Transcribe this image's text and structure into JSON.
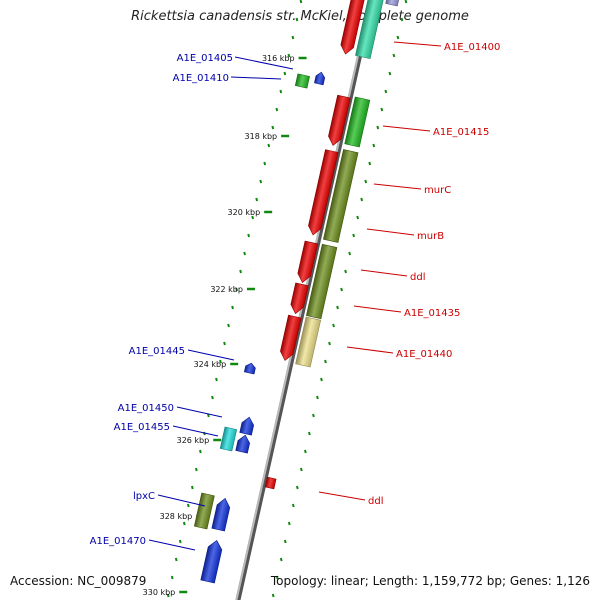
{
  "title": "Rickettsia canadensis str. McKiel, complete genome",
  "footer": {
    "accession": "Accession: NC_009879",
    "topology": "Topology: linear; Length: 1,159,772 bp; Genes: 1,126"
  },
  "scale_labels": [
    "316 kbp",
    "318 kbp",
    "320 kbp",
    "322 kbp",
    "324 kbp",
    "326 kbp",
    "328 kbp",
    "330 kbp"
  ],
  "colors": {
    "red": "#ee0000",
    "green": "#22bb22",
    "olive": "#6e8f1e",
    "pale_yellow": "#eee08a",
    "mint": "#33ddaa",
    "blue": "#1133dd",
    "cyan": "#22dddd",
    "lavender": "#9999dd",
    "left_label": "#0000aa",
    "right_label": "#cc0000",
    "tick_green": "#118811"
  },
  "left_labels": [
    "A1E_01405",
    "A1E_01410",
    "A1E_01445",
    "A1E_01450",
    "A1E_01455",
    "lpxC",
    "A1E_01470"
  ],
  "right_labels": [
    "A1E_01400",
    "A1E_01415",
    "murC",
    "murB",
    "ddl",
    "A1E_01435",
    "A1E_01440",
    "ddl"
  ]
}
